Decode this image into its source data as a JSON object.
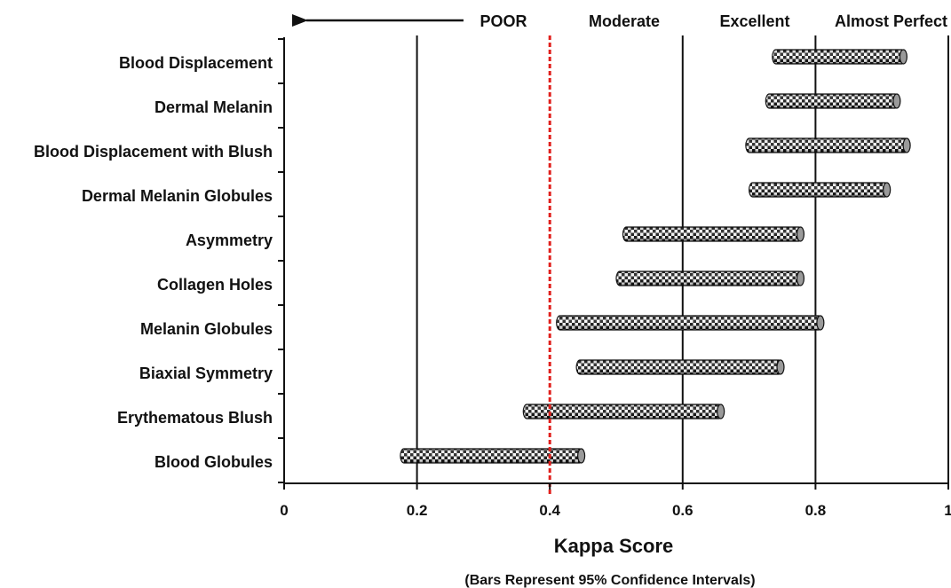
{
  "chart_data": {
    "type": "bar",
    "subtype": "horizontal-range",
    "categories": [
      "Blood Displacement",
      "Dermal Melanin",
      "Blood Displacement with Blush",
      "Dermal Melanin Globules",
      "Asymmetry",
      "Collagen Holes",
      "Melanin Globules",
      "Biaxial Symmetry",
      "Erythematous Blush",
      "Blood Globules"
    ],
    "ranges": [
      [
        0.735,
        0.935
      ],
      [
        0.725,
        0.925
      ],
      [
        0.695,
        0.94
      ],
      [
        0.7,
        0.91
      ],
      [
        0.51,
        0.78
      ],
      [
        0.5,
        0.78
      ],
      [
        0.41,
        0.81
      ],
      [
        0.44,
        0.75
      ],
      [
        0.36,
        0.66
      ],
      [
        0.175,
        0.45
      ]
    ],
    "xlabel": "Kappa Score",
    "subtitle": "(Bars Represent 95% Confidence Intervals)",
    "xlim": [
      0,
      1
    ],
    "xticks": [
      0,
      0.2,
      0.4,
      0.6,
      0.8,
      1
    ],
    "xtick_labels": [
      "0",
      "0.2",
      "0.4",
      "0.6",
      "0.8",
      "1"
    ],
    "grid": "vertical lines at 0.2, 0.6, 0.8, 1",
    "reference_line": {
      "value": 0.4,
      "style": "dashed",
      "color": "#e0201c"
    },
    "bands": [
      {
        "label": "POOR",
        "arrow": "left"
      },
      {
        "label": "Moderate"
      },
      {
        "label": "Excellent"
      },
      {
        "label": "Almost Perfect"
      }
    ],
    "bar_pattern": "checkered black and white cylinders",
    "colors": {
      "axis": "#111111",
      "bar_dark": "#1a1a1a",
      "bar_light": "#ffffff",
      "reference": "#e0201c"
    }
  }
}
